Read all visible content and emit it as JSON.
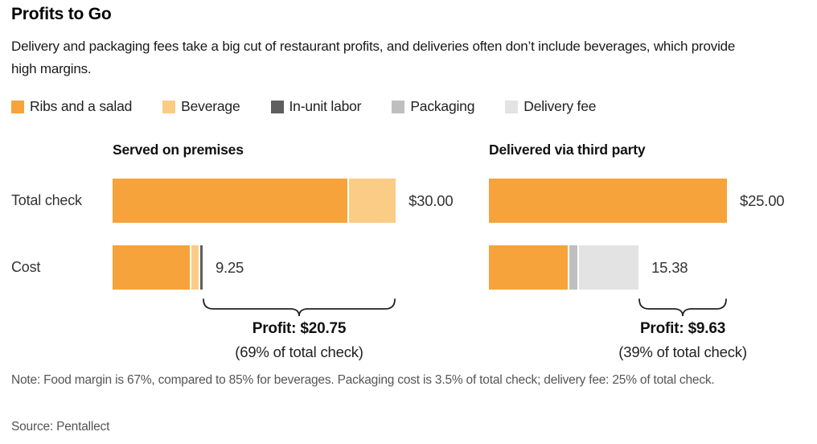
{
  "header": {
    "title": "Profits to Go",
    "subtitle": "Delivery and packaging fees take a big cut of restaurant profits, and deliveries often don’t include beverages, which provide high margins."
  },
  "footer": {
    "note": "Note: Food margin is 67%, compared to 85% for beverages. Packaging cost is 3.5% of total check; delivery fee: 25% of total check.",
    "source": "Source: Pentallect"
  },
  "chart_data": {
    "type": "bar",
    "orientation": "horizontal",
    "unit": "USD",
    "grid": false,
    "row_labels": [
      "Total check",
      "Cost"
    ],
    "legend": [
      {
        "label": "Ribs and a salad",
        "color": "#F6A33B"
      },
      {
        "label": "Beverage",
        "color": "#FACC86"
      },
      {
        "label": "In-unit labor",
        "color": "#5E5E5E"
      },
      {
        "label": "Packaging",
        "color": "#BFBFBF"
      },
      {
        "label": "Delivery fee",
        "color": "#E3E3E4"
      }
    ],
    "panels": [
      {
        "header": "Served on premises",
        "rows": [
          {
            "label": "Total check",
            "value_label": "$30.00",
            "total": 30,
            "segments": [
              {
                "name": "Ribs and a salad",
                "value": 25
              },
              {
                "name": "Beverage",
                "value": 5
              }
            ]
          },
          {
            "label": "Cost",
            "value_label": "9.25",
            "total": 9.25,
            "segments": [
              {
                "name": "Ribs and a salad",
                "value": 8.25
              },
              {
                "name": "Beverage",
                "value": 0.75
              },
              {
                "name": "In-unit labor",
                "value": 0.25
              }
            ]
          }
        ],
        "profit": {
          "value": 20.75,
          "label": "Profit: $20.75",
          "note": "(69% of total check)"
        }
      },
      {
        "header": "Delivered via third party",
        "rows": [
          {
            "label": "Total check",
            "value_label": "$25.00",
            "total": 25,
            "segments": [
              {
                "name": "Ribs and a salad",
                "value": 25
              }
            ]
          },
          {
            "label": "Cost",
            "value_label": "15.38",
            "total": 15.38,
            "segments": [
              {
                "name": "Ribs and a salad",
                "value": 8.25
              },
              {
                "name": "Packaging",
                "value": 0.88
              },
              {
                "name": "Delivery fee",
                "value": 6.25
              }
            ]
          }
        ],
        "profit": {
          "value": 9.63,
          "label": "Profit: $9.63",
          "note": "(39% of total check)"
        }
      }
    ]
  }
}
